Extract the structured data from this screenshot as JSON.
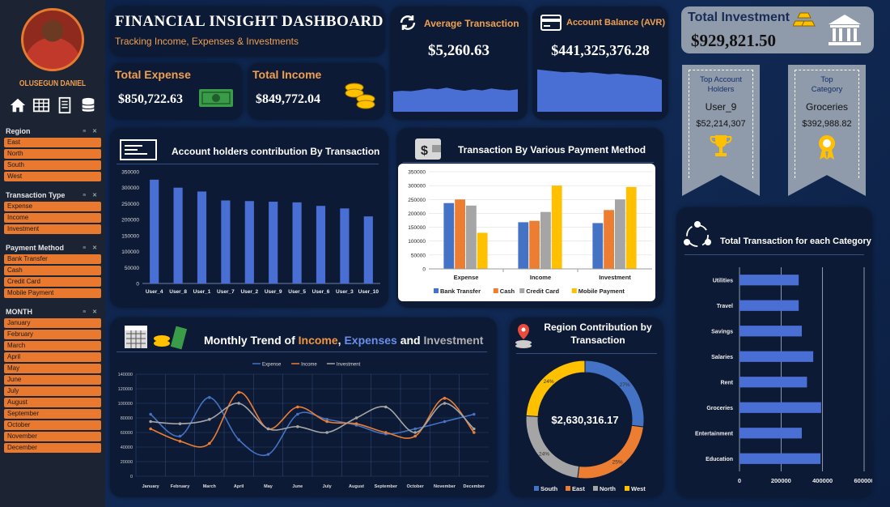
{
  "header": {
    "title": "FINANCIAL INSIGHT DASHBOARD",
    "subtitle": "Tracking Income, Expenses & Investments"
  },
  "user": {
    "name": "OLUSEGUN DANIEL"
  },
  "nav_icons": [
    "home-icon",
    "table-icon",
    "document-icon",
    "database-icon"
  ],
  "slicers": {
    "region": {
      "title": "Region",
      "items": [
        "East",
        "North",
        "South",
        "West"
      ]
    },
    "transaction_type": {
      "title": "Transaction Type",
      "items": [
        "Expense",
        "Income",
        "Investment"
      ]
    },
    "payment_method": {
      "title": "Payment Method",
      "items": [
        "Bank Transfer",
        "Cash",
        "Credit Card",
        "Mobile Payment"
      ]
    },
    "month": {
      "title": "MONTH",
      "items": [
        "January",
        "February",
        "March",
        "April",
        "May",
        "June",
        "July",
        "August",
        "September",
        "October",
        "November",
        "December"
      ]
    }
  },
  "kpis": {
    "total_expense": {
      "label": "Total Expense",
      "value": "$850,722.63"
    },
    "total_income": {
      "label": "Total Income",
      "value": "$849,772.04"
    },
    "average_transaction": {
      "label": "Average Transaction",
      "value": "$5,260.63"
    },
    "account_balance": {
      "label": "Account Balance (AVR)",
      "value": "$441,325,376.28"
    },
    "total_investment": {
      "label": "Total Investment",
      "value": "$929,821.50"
    }
  },
  "top_account": {
    "title": "Top Account Holders",
    "name": "User_9",
    "value": "$52,214,307"
  },
  "top_category": {
    "title": "Top Category",
    "name": "Groceries",
    "value": "$392,988.82"
  },
  "colors": {
    "orange": "#e8792f",
    "blue": "#4472c4",
    "gray": "#a5a5a5",
    "yellow": "#ffc000",
    "bar_blue": "#4a6fd4"
  },
  "chart_data": [
    {
      "id": "sparkline_avg",
      "type": "area",
      "values": [
        52,
        54,
        53,
        56,
        60,
        58,
        62,
        57,
        54,
        58,
        55,
        60,
        57,
        55,
        58
      ]
    },
    {
      "id": "sparkline_balance",
      "type": "area",
      "values": [
        90,
        88,
        86,
        84,
        85,
        83,
        84,
        82,
        80,
        81,
        79,
        78,
        76,
        73,
        68
      ]
    },
    {
      "id": "account_holders",
      "type": "bar",
      "title": "Account holders contribution By Transaction",
      "categories": [
        "User_4",
        "User_8",
        "User_1",
        "User_7",
        "User_2",
        "User_9",
        "User_5",
        "User_6",
        "User_3",
        "User_10"
      ],
      "values": [
        325000,
        300000,
        288000,
        260000,
        258000,
        256000,
        254000,
        243000,
        235000,
        210000
      ],
      "ylim": [
        0,
        350000
      ],
      "yticks": [
        "0",
        "50000",
        "100000",
        "150000",
        "200000",
        "250000",
        "300000",
        "350000"
      ]
    },
    {
      "id": "payment_method",
      "type": "bar",
      "title": "Transaction By Various Payment Method",
      "categories": [
        "Expense",
        "Income",
        "Investment"
      ],
      "series": [
        {
          "name": "Bank Transfer",
          "color": "#4472c4",
          "values": [
            237000,
            168000,
            165000
          ]
        },
        {
          "name": "Cash",
          "color": "#ed7d31",
          "values": [
            250000,
            173000,
            212000
          ]
        },
        {
          "name": "Credit Card",
          "color": "#a5a5a5",
          "values": [
            228000,
            205000,
            250000
          ]
        },
        {
          "name": "Mobile Payment",
          "color": "#ffc000",
          "values": [
            130000,
            300000,
            295000
          ]
        }
      ],
      "ylim": [
        0,
        350000
      ],
      "yticks": [
        "0",
        "50000",
        "100000",
        "150000",
        "200000",
        "250000",
        "300000",
        "350000"
      ]
    },
    {
      "id": "monthly_trend",
      "type": "line",
      "title_parts": [
        "Monthly Trend of ",
        "Income",
        ", ",
        "Expenses",
        " and ",
        "Investment"
      ],
      "categories": [
        "January",
        "February",
        "March",
        "April",
        "May",
        "June",
        "July",
        "August",
        "September",
        "October",
        "November",
        "December"
      ],
      "series": [
        {
          "name": "Expense",
          "color": "#4472c4",
          "values": [
            85000,
            55000,
            108000,
            50000,
            30000,
            85000,
            78000,
            70000,
            58000,
            65000,
            75000,
            85000
          ]
        },
        {
          "name": "Income",
          "color": "#ed7d31",
          "values": [
            65000,
            48000,
            45000,
            115000,
            65000,
            95000,
            75000,
            72000,
            60000,
            55000,
            107000,
            60000
          ]
        },
        {
          "name": "Investment",
          "color": "#a5a5a5",
          "values": [
            75000,
            72000,
            78000,
            100000,
            65000,
            68000,
            60000,
            80000,
            95000,
            60000,
            100000,
            65000
          ]
        }
      ],
      "ylim": [
        0,
        140000
      ],
      "yticks": [
        "0",
        "20000",
        "40000",
        "60000",
        "80000",
        "100000",
        "120000",
        "140000"
      ]
    },
    {
      "id": "region_donut",
      "type": "pie",
      "title": "Region Contribution by Transaction",
      "center_label": "$2,630,316.17",
      "slices": [
        {
          "name": "South",
          "color": "#4472c4",
          "value": 27,
          "label": "27%"
        },
        {
          "name": "East",
          "color": "#ed7d31",
          "value": 25,
          "label": "25%"
        },
        {
          "name": "North",
          "color": "#a5a5a5",
          "value": 24,
          "label": "24%"
        },
        {
          "name": "West",
          "color": "#ffc000",
          "value": 24,
          "label": "24%"
        }
      ]
    },
    {
      "id": "category_bar",
      "type": "bar",
      "orientation": "horizontal",
      "title": "Total Transaction for each Category",
      "categories": [
        "Utilities",
        "Travel",
        "Savings",
        "Salaries",
        "Rent",
        "Groceries",
        "Entertainment",
        "Education"
      ],
      "values": [
        285000,
        285000,
        300000,
        355000,
        325000,
        393000,
        300000,
        390000
      ],
      "xlim": [
        0,
        600000
      ],
      "xticks": [
        "0",
        "200000",
        "400000",
        "600000"
      ]
    }
  ]
}
